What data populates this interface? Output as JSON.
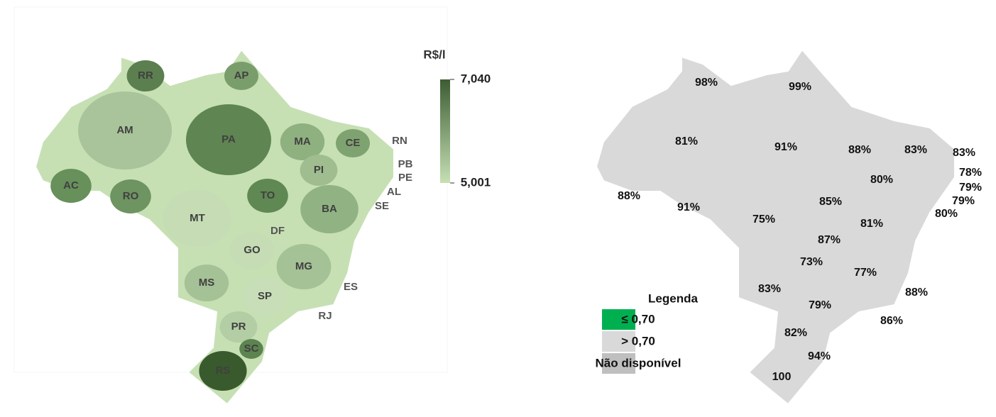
{
  "left_map": {
    "legend_title": "R$/l",
    "scale_ticks": [
      {
        "value": 7.04,
        "label": "7,040"
      },
      {
        "value": 5.001,
        "label": "5,001"
      }
    ],
    "scale_colors": [
      "#3d5c33",
      "#c6e0b4"
    ],
    "states": [
      {
        "label": "RR",
        "color": "#5b7f4e"
      },
      {
        "label": "AP",
        "color": "#7a9e6b"
      },
      {
        "label": "AM",
        "color": "#a9c49a"
      },
      {
        "label": "PA",
        "color": "#5e8552"
      },
      {
        "label": "MA",
        "color": "#8fb07f"
      },
      {
        "label": "CE",
        "color": "#7fa370"
      },
      {
        "label": "RN"
      },
      {
        "label": "PB"
      },
      {
        "label": "PE"
      },
      {
        "label": "AL"
      },
      {
        "label": "SE"
      },
      {
        "label": "PI",
        "color": "#a0bd90"
      },
      {
        "label": "AC",
        "color": "#67905a"
      },
      {
        "label": "RO",
        "color": "#6e9461"
      },
      {
        "label": "TO",
        "color": "#5f8853"
      },
      {
        "label": "BA",
        "color": "#91b282"
      },
      {
        "label": "MT",
        "color": "#c5dcb5"
      },
      {
        "label": "DF"
      },
      {
        "label": "GO",
        "color": "#c5dcb5"
      },
      {
        "label": "MG",
        "color": "#a5c196"
      },
      {
        "label": "ES"
      },
      {
        "label": "MS",
        "color": "#a5c196"
      },
      {
        "label": "SP",
        "color": "#c8deb8"
      },
      {
        "label": "RJ"
      },
      {
        "label": "PR",
        "color": "#b3cea4"
      },
      {
        "label": "SC",
        "color": "#5c8350"
      },
      {
        "label": "RS",
        "color": "#395a2d"
      }
    ]
  },
  "right_map": {
    "regions": [
      {
        "value": 98,
        "label": "98%"
      },
      {
        "value": 99,
        "label": "99%"
      },
      {
        "value": 81,
        "label": "81%"
      },
      {
        "value": 91,
        "label": "91%"
      },
      {
        "value": 88,
        "label": "88%"
      },
      {
        "value": 83,
        "label": "83%"
      },
      {
        "value": 83,
        "label": "83%"
      },
      {
        "value": 78,
        "label": "78%"
      },
      {
        "value": 79,
        "label": "79%"
      },
      {
        "value": 79,
        "label": "79%"
      },
      {
        "value": 80,
        "label": "80%"
      },
      {
        "value": 80,
        "label": "80%"
      },
      {
        "value": 88,
        "label": "88%"
      },
      {
        "value": 91,
        "label": "91%"
      },
      {
        "value": 85,
        "label": "85%"
      },
      {
        "value": 75,
        "label": "75%"
      },
      {
        "value": 81,
        "label": "81%"
      },
      {
        "value": 87,
        "label": "87%"
      },
      {
        "value": 73,
        "label": "73%"
      },
      {
        "value": 77,
        "label": "77%"
      },
      {
        "value": 83,
        "label": "83%"
      },
      {
        "value": 88,
        "label": "88%"
      },
      {
        "value": 79,
        "label": "79%"
      },
      {
        "value": 86,
        "label": "86%"
      },
      {
        "value": 82,
        "label": "82%"
      },
      {
        "value": 94,
        "label": "94%"
      },
      100
    ],
    "legend": {
      "title": "Legenda",
      "items": [
        {
          "label": "≤ 0,70",
          "color": "#00b050"
        },
        {
          "label": "> 0,70",
          "color": "#d9d9d9"
        },
        {
          "label": "Não disponível",
          "color": "#bfbfbf"
        }
      ]
    }
  }
}
